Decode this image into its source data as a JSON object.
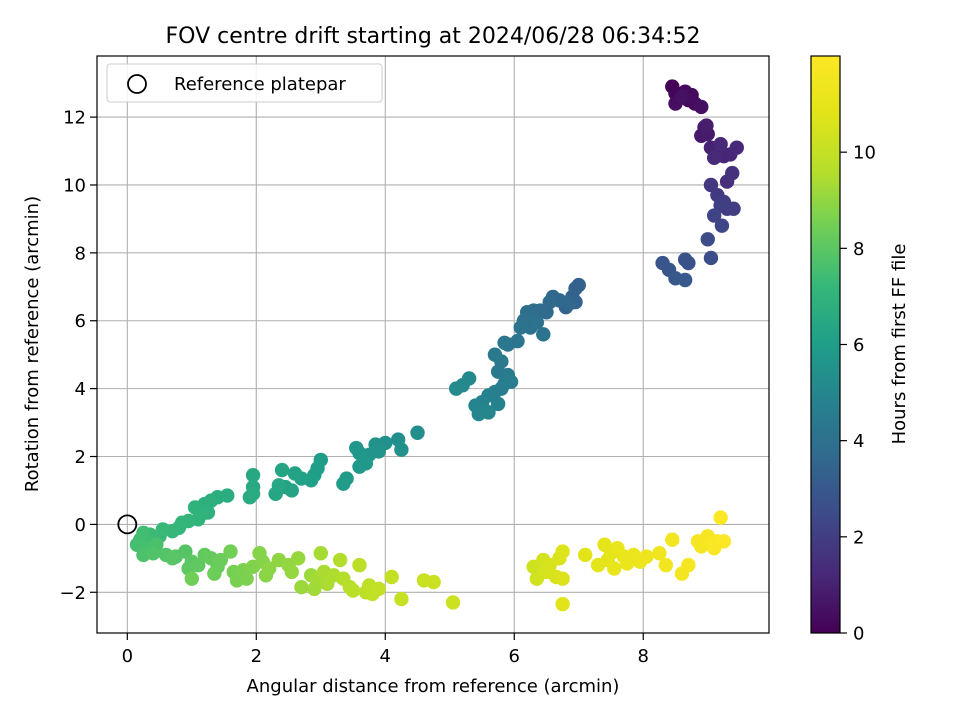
{
  "chart_data": {
    "type": "scatter",
    "title": "FOV centre drift starting at 2024/06/28 06:34:52",
    "xlabel": "Angular distance from reference (arcmin)",
    "ylabel": "Rotation from reference (arcmin)",
    "colorbar_label": "Hours from first FF file",
    "xlim": [
      -0.47,
      9.95
    ],
    "ylim": [
      -3.2,
      13.8
    ],
    "clim": [
      0,
      12
    ],
    "xticks": [
      0,
      2,
      4,
      6,
      8
    ],
    "yticks": [
      -2,
      0,
      2,
      4,
      6,
      8,
      10,
      12
    ],
    "cticks": [
      0,
      2,
      4,
      6,
      8,
      10
    ],
    "grid": true,
    "legend": {
      "placement": "top-left",
      "entries": [
        {
          "label": "Reference platepar",
          "marker": "open-circle"
        }
      ]
    },
    "reference_point": {
      "x": 0,
      "y": 0
    },
    "colormap": "viridis",
    "points": [
      {
        "x": 8.45,
        "y": 12.9,
        "h": 0.05
      },
      {
        "x": 8.5,
        "y": 12.7,
        "h": 0.1
      },
      {
        "x": 8.55,
        "y": 12.55,
        "h": 0.15
      },
      {
        "x": 8.65,
        "y": 12.75,
        "h": 0.2
      },
      {
        "x": 8.7,
        "y": 12.5,
        "h": 0.25
      },
      {
        "x": 8.75,
        "y": 12.65,
        "h": 0.3
      },
      {
        "x": 8.8,
        "y": 12.4,
        "h": 0.35
      },
      {
        "x": 8.5,
        "y": 12.4,
        "h": 0.4
      },
      {
        "x": 8.9,
        "y": 12.3,
        "h": 0.45
      },
      {
        "x": 8.6,
        "y": 12.6,
        "h": 0.5
      },
      {
        "x": 8.95,
        "y": 11.7,
        "h": 0.7
      },
      {
        "x": 8.9,
        "y": 11.45,
        "h": 0.75
      },
      {
        "x": 9.0,
        "y": 11.5,
        "h": 0.8
      },
      {
        "x": 8.98,
        "y": 11.75,
        "h": 0.85
      },
      {
        "x": 9.05,
        "y": 11.1,
        "h": 1.0
      },
      {
        "x": 9.15,
        "y": 11.0,
        "h": 1.05
      },
      {
        "x": 9.25,
        "y": 10.85,
        "h": 1.1
      },
      {
        "x": 9.35,
        "y": 10.9,
        "h": 1.15
      },
      {
        "x": 9.45,
        "y": 11.1,
        "h": 1.2
      },
      {
        "x": 9.2,
        "y": 11.2,
        "h": 1.25
      },
      {
        "x": 9.1,
        "y": 10.8,
        "h": 1.3
      },
      {
        "x": 9.3,
        "y": 10.1,
        "h": 1.5
      },
      {
        "x": 9.38,
        "y": 10.35,
        "h": 1.55
      },
      {
        "x": 9.05,
        "y": 10.0,
        "h": 1.7
      },
      {
        "x": 9.15,
        "y": 9.7,
        "h": 1.8
      },
      {
        "x": 9.25,
        "y": 9.5,
        "h": 1.9
      },
      {
        "x": 9.3,
        "y": 9.3,
        "h": 1.95
      },
      {
        "x": 9.4,
        "y": 9.3,
        "h": 2.0
      },
      {
        "x": 9.2,
        "y": 9.4,
        "h": 2.05
      },
      {
        "x": 9.1,
        "y": 9.1,
        "h": 2.2
      },
      {
        "x": 9.22,
        "y": 8.8,
        "h": 2.3
      },
      {
        "x": 9.0,
        "y": 8.4,
        "h": 2.5
      },
      {
        "x": 9.05,
        "y": 7.85,
        "h": 2.6
      },
      {
        "x": 8.7,
        "y": 7.7,
        "h": 2.7
      },
      {
        "x": 8.65,
        "y": 7.8,
        "h": 2.75
      },
      {
        "x": 8.3,
        "y": 7.7,
        "h": 2.85
      },
      {
        "x": 8.4,
        "y": 7.5,
        "h": 2.9
      },
      {
        "x": 8.5,
        "y": 7.25,
        "h": 2.95
      },
      {
        "x": 8.65,
        "y": 7.2,
        "h": 3.0
      },
      {
        "x": 7.0,
        "y": 7.05,
        "h": 3.3
      },
      {
        "x": 6.95,
        "y": 6.95,
        "h": 3.35
      },
      {
        "x": 6.9,
        "y": 6.7,
        "h": 3.4
      },
      {
        "x": 6.95,
        "y": 6.55,
        "h": 3.45
      },
      {
        "x": 6.8,
        "y": 6.4,
        "h": 3.5
      },
      {
        "x": 6.85,
        "y": 6.5,
        "h": 3.55
      },
      {
        "x": 6.7,
        "y": 6.6,
        "h": 3.6
      },
      {
        "x": 6.6,
        "y": 6.7,
        "h": 3.65
      },
      {
        "x": 6.55,
        "y": 6.55,
        "h": 3.7
      },
      {
        "x": 6.5,
        "y": 6.25,
        "h": 3.75
      },
      {
        "x": 6.4,
        "y": 6.3,
        "h": 3.8
      },
      {
        "x": 6.3,
        "y": 6.3,
        "h": 3.85
      },
      {
        "x": 6.2,
        "y": 6.25,
        "h": 3.9
      },
      {
        "x": 6.15,
        "y": 6.0,
        "h": 3.95
      },
      {
        "x": 6.25,
        "y": 5.8,
        "h": 4.0
      },
      {
        "x": 6.35,
        "y": 5.95,
        "h": 4.05
      },
      {
        "x": 6.45,
        "y": 5.6,
        "h": 4.1
      },
      {
        "x": 6.1,
        "y": 5.8,
        "h": 4.15
      },
      {
        "x": 6.05,
        "y": 5.4,
        "h": 4.2
      },
      {
        "x": 5.9,
        "y": 5.3,
        "h": 4.25
      },
      {
        "x": 5.85,
        "y": 5.35,
        "h": 4.3
      },
      {
        "x": 5.7,
        "y": 5.0,
        "h": 4.35
      },
      {
        "x": 5.8,
        "y": 4.8,
        "h": 4.4
      },
      {
        "x": 5.75,
        "y": 4.5,
        "h": 4.45
      },
      {
        "x": 5.9,
        "y": 4.4,
        "h": 4.5
      },
      {
        "x": 5.95,
        "y": 4.2,
        "h": 4.55
      },
      {
        "x": 5.8,
        "y": 4.0,
        "h": 4.6
      },
      {
        "x": 5.85,
        "y": 4.15,
        "h": 4.6
      },
      {
        "x": 5.7,
        "y": 3.9,
        "h": 4.65
      },
      {
        "x": 5.6,
        "y": 3.8,
        "h": 4.7
      },
      {
        "x": 5.75,
        "y": 3.55,
        "h": 4.75
      },
      {
        "x": 5.5,
        "y": 3.6,
        "h": 4.8
      },
      {
        "x": 5.55,
        "y": 3.35,
        "h": 4.85
      },
      {
        "x": 5.4,
        "y": 3.5,
        "h": 4.9
      },
      {
        "x": 5.45,
        "y": 3.25,
        "h": 4.95
      },
      {
        "x": 5.6,
        "y": 3.3,
        "h": 5.0
      },
      {
        "x": 5.2,
        "y": 4.1,
        "h": 5.05
      },
      {
        "x": 5.3,
        "y": 4.3,
        "h": 5.1
      },
      {
        "x": 5.1,
        "y": 4.0,
        "h": 5.15
      },
      {
        "x": 4.5,
        "y": 2.7,
        "h": 5.3
      },
      {
        "x": 4.2,
        "y": 2.5,
        "h": 5.35
      },
      {
        "x": 4.25,
        "y": 2.2,
        "h": 5.4
      },
      {
        "x": 4.0,
        "y": 2.4,
        "h": 5.45
      },
      {
        "x": 3.85,
        "y": 2.35,
        "h": 5.5
      },
      {
        "x": 3.9,
        "y": 2.15,
        "h": 5.55
      },
      {
        "x": 3.75,
        "y": 2.05,
        "h": 5.6
      },
      {
        "x": 3.6,
        "y": 2.1,
        "h": 5.65
      },
      {
        "x": 3.55,
        "y": 2.25,
        "h": 5.7
      },
      {
        "x": 3.7,
        "y": 1.8,
        "h": 5.75
      },
      {
        "x": 3.6,
        "y": 1.7,
        "h": 5.8
      },
      {
        "x": 3.4,
        "y": 1.35,
        "h": 5.85
      },
      {
        "x": 3.35,
        "y": 1.2,
        "h": 5.9
      },
      {
        "x": 3.0,
        "y": 1.9,
        "h": 5.95
      },
      {
        "x": 2.95,
        "y": 1.65,
        "h": 6.0
      },
      {
        "x": 2.9,
        "y": 1.45,
        "h": 6.05
      },
      {
        "x": 2.85,
        "y": 1.3,
        "h": 6.1
      },
      {
        "x": 2.7,
        "y": 1.35,
        "h": 6.15
      },
      {
        "x": 2.6,
        "y": 1.5,
        "h": 6.2
      },
      {
        "x": 2.55,
        "y": 1.0,
        "h": 6.25
      },
      {
        "x": 2.45,
        "y": 1.1,
        "h": 6.3
      },
      {
        "x": 2.4,
        "y": 1.6,
        "h": 6.35
      },
      {
        "x": 2.3,
        "y": 0.9,
        "h": 6.4
      },
      {
        "x": 2.35,
        "y": 1.15,
        "h": 6.45
      },
      {
        "x": 1.95,
        "y": 1.45,
        "h": 6.5
      },
      {
        "x": 1.95,
        "y": 1.1,
        "h": 6.55
      },
      {
        "x": 1.9,
        "y": 0.8,
        "h": 6.6
      },
      {
        "x": 1.95,
        "y": 0.9,
        "h": 6.62
      },
      {
        "x": 1.55,
        "y": 0.85,
        "h": 6.65
      },
      {
        "x": 1.4,
        "y": 0.8,
        "h": 6.7
      },
      {
        "x": 1.3,
        "y": 0.7,
        "h": 6.75
      },
      {
        "x": 1.2,
        "y": 0.6,
        "h": 6.8
      },
      {
        "x": 1.25,
        "y": 0.35,
        "h": 6.85
      },
      {
        "x": 1.15,
        "y": 0.3,
        "h": 6.9
      },
      {
        "x": 1.05,
        "y": 0.5,
        "h": 6.95
      },
      {
        "x": 1.1,
        "y": 0.15,
        "h": 7.0
      },
      {
        "x": 0.95,
        "y": 0.1,
        "h": 7.05
      },
      {
        "x": 0.85,
        "y": 0.05,
        "h": 7.1
      },
      {
        "x": 0.8,
        "y": -0.1,
        "h": 7.15
      },
      {
        "x": 0.7,
        "y": -0.2,
        "h": 7.2
      },
      {
        "x": 0.55,
        "y": -0.15,
        "h": 7.25
      },
      {
        "x": 0.5,
        "y": -0.35,
        "h": 7.3
      },
      {
        "x": 0.35,
        "y": -0.3,
        "h": 7.35
      },
      {
        "x": 0.3,
        "y": -0.5,
        "h": 7.4
      },
      {
        "x": 0.25,
        "y": -0.25,
        "h": 7.45
      },
      {
        "x": 0.2,
        "y": -0.45,
        "h": 7.5
      },
      {
        "x": 0.15,
        "y": -0.6,
        "h": 7.55
      },
      {
        "x": 0.3,
        "y": -0.75,
        "h": 7.6
      },
      {
        "x": 0.45,
        "y": -0.6,
        "h": 7.65
      },
      {
        "x": 0.25,
        "y": -0.9,
        "h": 7.7
      },
      {
        "x": 0.4,
        "y": -0.85,
        "h": 7.75
      },
      {
        "x": 0.6,
        "y": -0.9,
        "h": 7.8
      },
      {
        "x": 0.75,
        "y": -0.95,
        "h": 7.85
      },
      {
        "x": 0.9,
        "y": -0.8,
        "h": 7.9
      },
      {
        "x": 0.7,
        "y": -1.0,
        "h": 7.95
      },
      {
        "x": 1.0,
        "y": -1.1,
        "h": 8.0
      },
      {
        "x": 0.95,
        "y": -1.3,
        "h": 8.05
      },
      {
        "x": 1.1,
        "y": -1.2,
        "h": 8.1
      },
      {
        "x": 1.2,
        "y": -0.9,
        "h": 8.15
      },
      {
        "x": 1.3,
        "y": -1.0,
        "h": 8.2
      },
      {
        "x": 1.4,
        "y": -1.25,
        "h": 8.25
      },
      {
        "x": 1.45,
        "y": -1.05,
        "h": 8.3
      },
      {
        "x": 1.35,
        "y": -1.45,
        "h": 8.35
      },
      {
        "x": 1.0,
        "y": -1.6,
        "h": 8.4
      },
      {
        "x": 1.6,
        "y": -0.8,
        "h": 8.45
      },
      {
        "x": 1.65,
        "y": -1.4,
        "h": 8.5
      },
      {
        "x": 1.7,
        "y": -1.65,
        "h": 8.55
      },
      {
        "x": 1.8,
        "y": -1.35,
        "h": 8.6
      },
      {
        "x": 1.85,
        "y": -1.6,
        "h": 8.65
      },
      {
        "x": 1.95,
        "y": -1.25,
        "h": 8.7
      },
      {
        "x": 2.05,
        "y": -0.85,
        "h": 8.75
      },
      {
        "x": 2.1,
        "y": -1.1,
        "h": 8.8
      },
      {
        "x": 2.15,
        "y": -1.5,
        "h": 8.85
      },
      {
        "x": 2.2,
        "y": -1.3,
        "h": 8.9
      },
      {
        "x": 2.35,
        "y": -1.05,
        "h": 8.95
      },
      {
        "x": 2.5,
        "y": -1.2,
        "h": 9.0
      },
      {
        "x": 2.55,
        "y": -1.4,
        "h": 9.05
      },
      {
        "x": 2.65,
        "y": -1.0,
        "h": 9.1
      },
      {
        "x": 2.7,
        "y": -1.85,
        "h": 9.15
      },
      {
        "x": 2.85,
        "y": -1.5,
        "h": 9.2
      },
      {
        "x": 2.9,
        "y": -1.9,
        "h": 9.25
      },
      {
        "x": 2.95,
        "y": -1.6,
        "h": 9.3
      },
      {
        "x": 3.0,
        "y": -0.85,
        "h": 9.35
      },
      {
        "x": 3.05,
        "y": -1.4,
        "h": 9.4
      },
      {
        "x": 3.1,
        "y": -1.75,
        "h": 9.45
      },
      {
        "x": 3.2,
        "y": -1.5,
        "h": 9.5
      },
      {
        "x": 3.3,
        "y": -1.05,
        "h": 9.55
      },
      {
        "x": 3.35,
        "y": -1.6,
        "h": 9.6
      },
      {
        "x": 3.45,
        "y": -1.85,
        "h": 9.65
      },
      {
        "x": 3.5,
        "y": -1.95,
        "h": 9.7
      },
      {
        "x": 3.6,
        "y": -1.2,
        "h": 9.75
      },
      {
        "x": 3.7,
        "y": -2.0,
        "h": 9.8
      },
      {
        "x": 3.75,
        "y": -1.8,
        "h": 9.85
      },
      {
        "x": 3.8,
        "y": -2.05,
        "h": 9.9
      },
      {
        "x": 3.9,
        "y": -1.9,
        "h": 9.95
      },
      {
        "x": 4.1,
        "y": -1.55,
        "h": 10.0
      },
      {
        "x": 4.25,
        "y": -2.2,
        "h": 10.05
      },
      {
        "x": 4.6,
        "y": -1.65,
        "h": 10.1
      },
      {
        "x": 4.75,
        "y": -1.7,
        "h": 10.15
      },
      {
        "x": 5.05,
        "y": -2.3,
        "h": 10.2
      },
      {
        "x": 6.3,
        "y": -1.25,
        "h": 10.3
      },
      {
        "x": 6.35,
        "y": -1.6,
        "h": 10.35
      },
      {
        "x": 6.45,
        "y": -1.05,
        "h": 10.4
      },
      {
        "x": 6.5,
        "y": -1.4,
        "h": 10.45
      },
      {
        "x": 6.55,
        "y": -1.2,
        "h": 10.5
      },
      {
        "x": 6.65,
        "y": -1.55,
        "h": 10.55
      },
      {
        "x": 6.7,
        "y": -1.0,
        "h": 10.6
      },
      {
        "x": 6.75,
        "y": -1.6,
        "h": 10.65
      },
      {
        "x": 6.75,
        "y": -0.8,
        "h": 10.7
      },
      {
        "x": 6.75,
        "y": -2.35,
        "h": 10.75
      },
      {
        "x": 7.1,
        "y": -0.9,
        "h": 10.8
      },
      {
        "x": 7.3,
        "y": -1.2,
        "h": 10.85
      },
      {
        "x": 7.4,
        "y": -0.6,
        "h": 10.9
      },
      {
        "x": 7.45,
        "y": -1.05,
        "h": 10.95
      },
      {
        "x": 7.5,
        "y": -0.85,
        "h": 11.0
      },
      {
        "x": 7.55,
        "y": -1.3,
        "h": 11.05
      },
      {
        "x": 7.6,
        "y": -0.7,
        "h": 11.1
      },
      {
        "x": 7.7,
        "y": -0.95,
        "h": 11.15
      },
      {
        "x": 7.75,
        "y": -1.15,
        "h": 11.2
      },
      {
        "x": 7.85,
        "y": -0.9,
        "h": 11.25
      },
      {
        "x": 7.95,
        "y": -1.1,
        "h": 11.3
      },
      {
        "x": 8.05,
        "y": -0.95,
        "h": 11.35
      },
      {
        "x": 8.25,
        "y": -0.85,
        "h": 11.4
      },
      {
        "x": 8.35,
        "y": -1.2,
        "h": 11.45
      },
      {
        "x": 8.45,
        "y": -0.45,
        "h": 11.5
      },
      {
        "x": 8.6,
        "y": -1.45,
        "h": 11.55
      },
      {
        "x": 8.7,
        "y": -1.2,
        "h": 11.6
      },
      {
        "x": 8.85,
        "y": -0.5,
        "h": 11.65
      },
      {
        "x": 8.9,
        "y": -0.65,
        "h": 11.7
      },
      {
        "x": 9.0,
        "y": -0.35,
        "h": 11.75
      },
      {
        "x": 9.1,
        "y": -0.7,
        "h": 11.8
      },
      {
        "x": 9.15,
        "y": -0.5,
        "h": 11.85
      },
      {
        "x": 9.2,
        "y": 0.2,
        "h": 11.9
      },
      {
        "x": 9.25,
        "y": -0.5,
        "h": 11.95
      }
    ]
  }
}
